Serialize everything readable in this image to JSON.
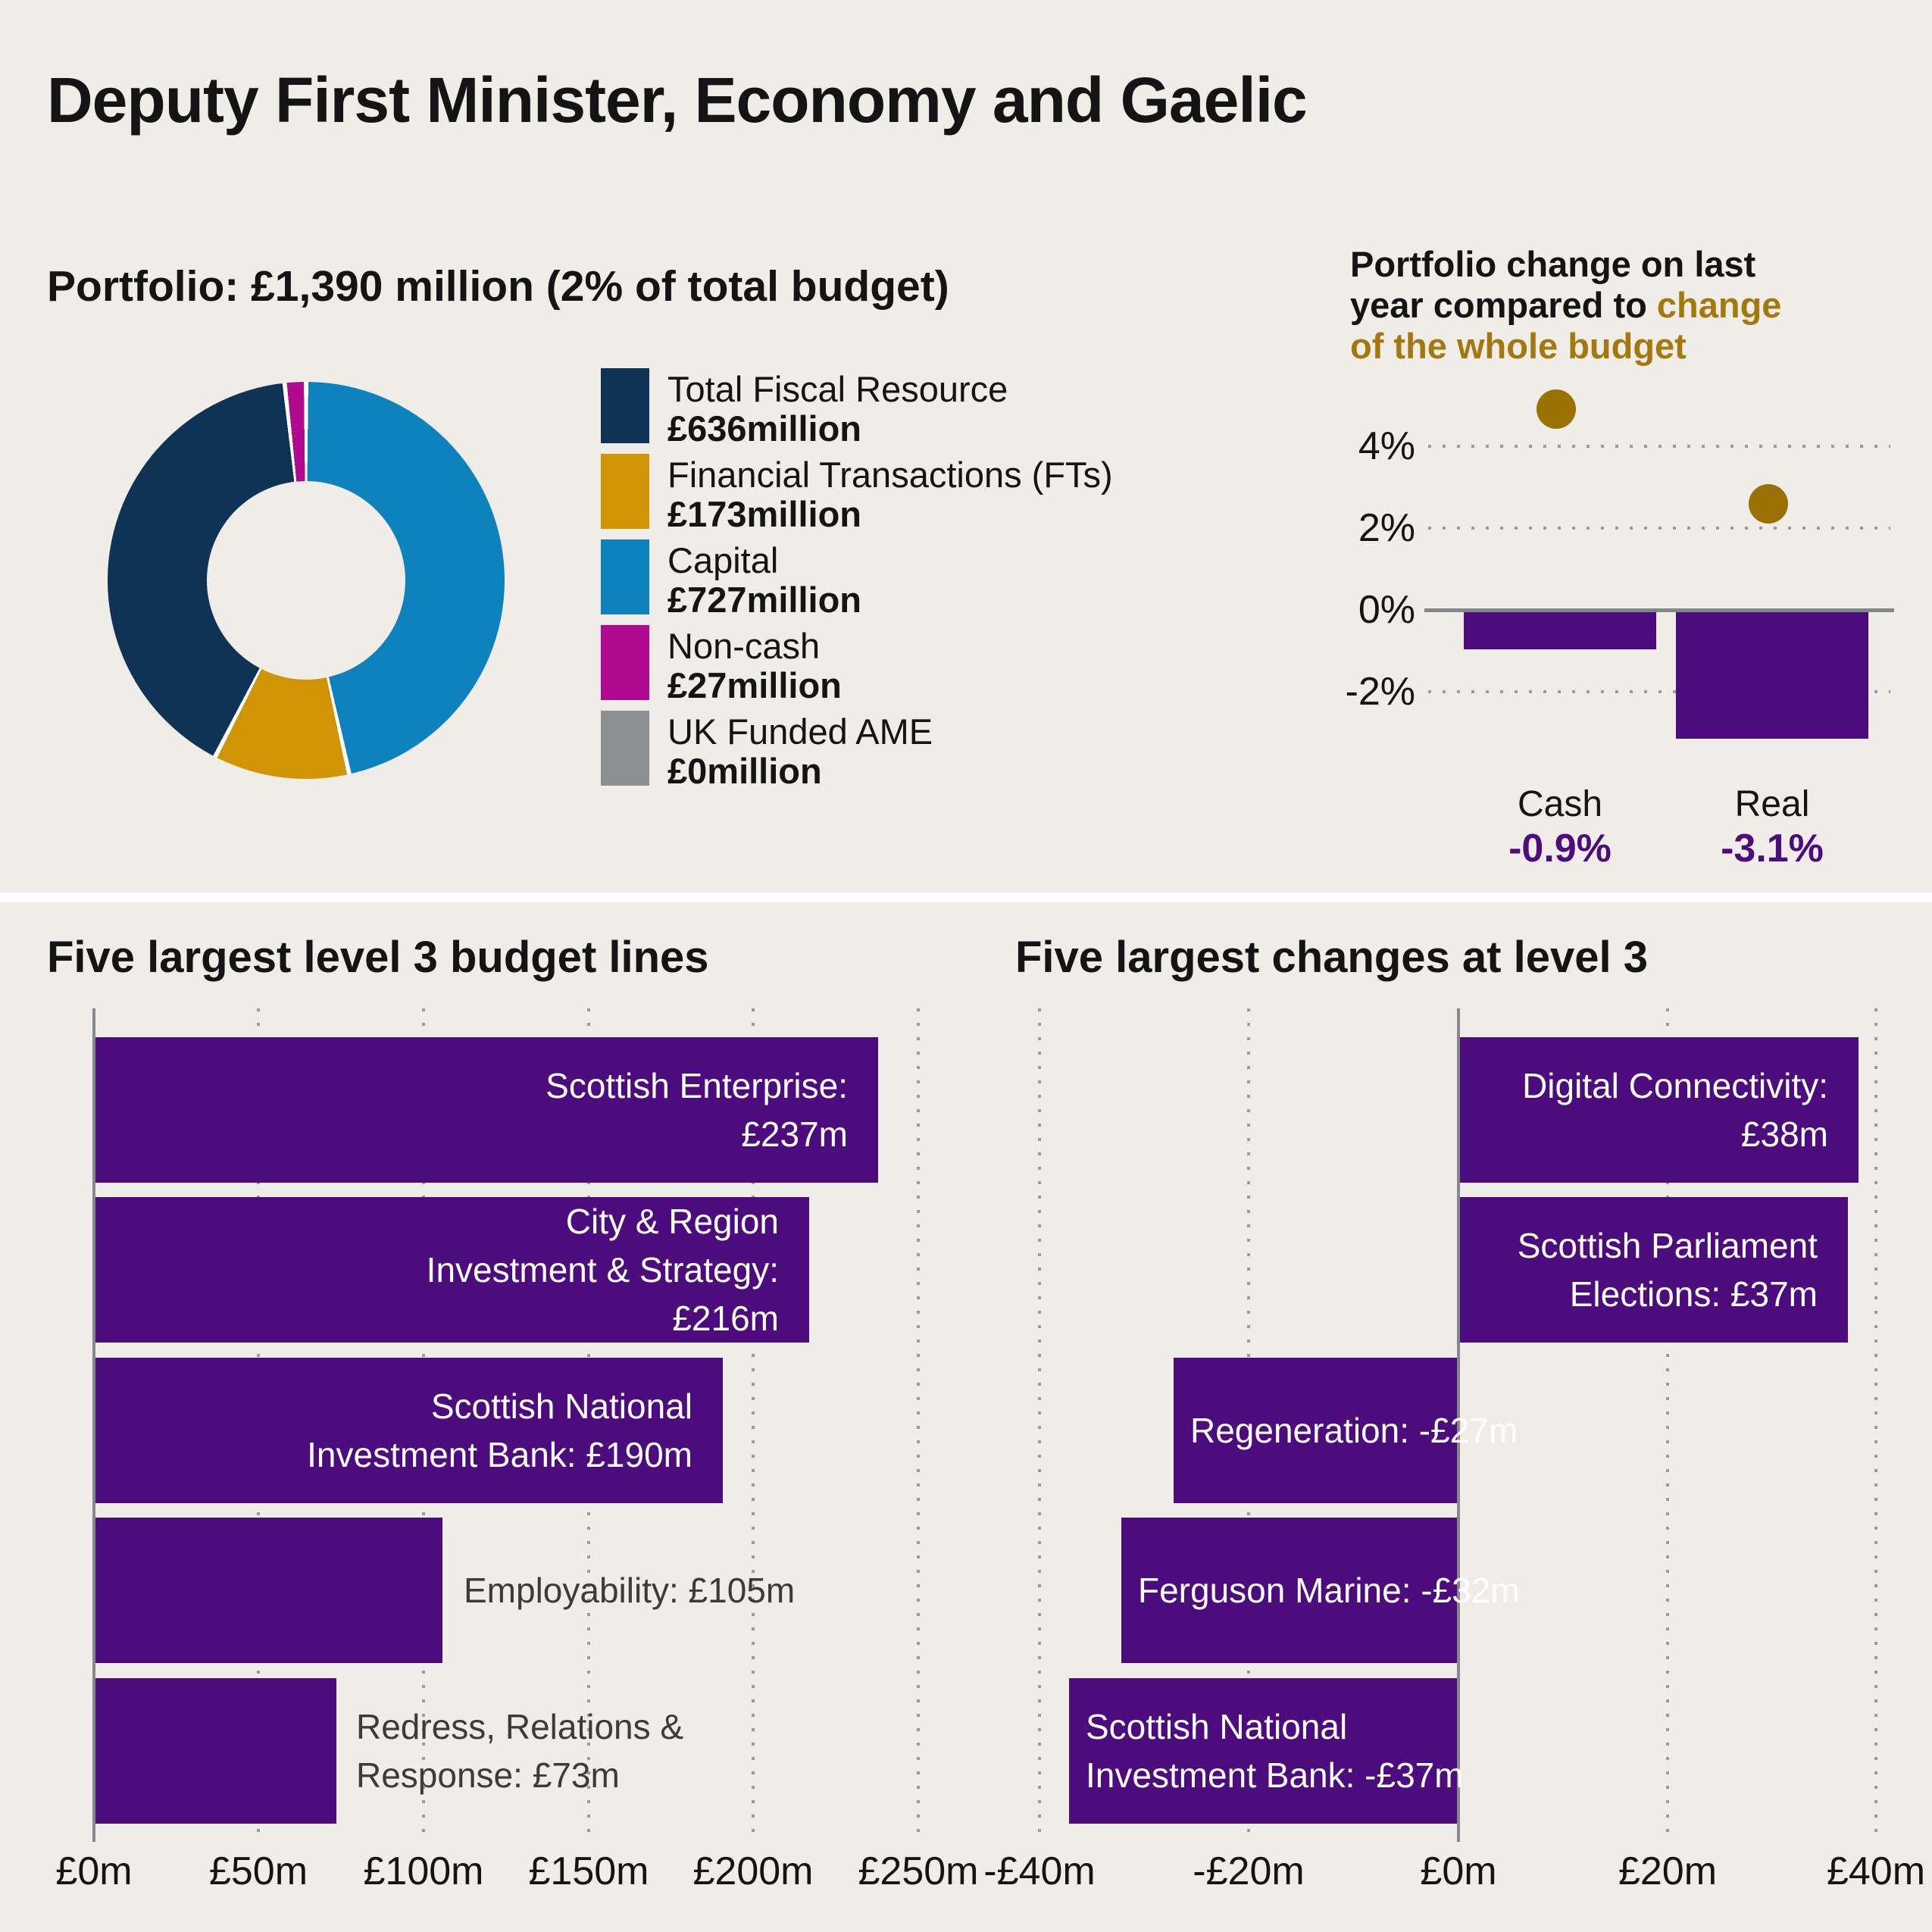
{
  "title": "Deputy First Minister, Economy and Gaelic",
  "colors": {
    "background": "#f0ece8",
    "accent_purple": "#4d0c7e",
    "navy": "#0e3355",
    "gold": "#d09405",
    "blue": "#0e82bd",
    "magenta": "#b00b8e",
    "gray": "#8c9091",
    "gold_dot": "#9a7104",
    "gold_title_text": "#a3790e",
    "axis_gray": "#85888a"
  },
  "portfolio": {
    "heading": "Portfolio: £1,390 million (2% of total budget)",
    "legend": [
      {
        "label": "Total Fiscal Resource",
        "value": "£636million",
        "color": "#0e3355"
      },
      {
        "label": "Financial Transactions (FTs)",
        "value": "£173million",
        "color": "#d09405"
      },
      {
        "label": "Capital",
        "value": "£727million",
        "color": "#0e82bd"
      },
      {
        "label": "Non-cash",
        "value": "£27million",
        "color": "#b00b8e"
      },
      {
        "label": "UK Funded AME",
        "value": "£0million",
        "color": "#8c9091"
      }
    ]
  },
  "change_chart": {
    "title_line1": "Portfolio change on last",
    "title_line2_black": "year compared to ",
    "title_line2_gold": "change",
    "title_line3_gold": "of the whole budget",
    "y_ticks": [
      "4%",
      "2%",
      "0%",
      "-2%"
    ],
    "items": [
      {
        "category": "Cash",
        "value_label": "-0.9%"
      },
      {
        "category": "Real",
        "value_label": "-3.1%"
      }
    ]
  },
  "left_chart": {
    "heading": "Five largest level 3 budget lines",
    "bars": [
      {
        "line1": "Scottish Enterprise:",
        "line2": "£237m"
      },
      {
        "line1": "City & Region",
        "line2": "Investment & Strategy:",
        "line3": "£216m"
      },
      {
        "line1": "Scottish National",
        "line2": "Investment Bank: £190m"
      },
      {
        "line1": "Employability: £105m"
      },
      {
        "line1": "Redress, Relations &",
        "line2": "Response: £73m"
      }
    ],
    "x_ticks": [
      "£0m",
      "£50m",
      "£100m",
      "£150m",
      "£200m",
      "£250m"
    ]
  },
  "right_chart": {
    "heading": "Five largest changes at level 3",
    "bars": [
      {
        "line1": "Digital Connectivity:",
        "line2": "£38m"
      },
      {
        "line1": "Scottish Parliament",
        "line2": "Elections: £37m"
      },
      {
        "line1": "Regeneration: -£27m"
      },
      {
        "line1": "Ferguson Marine: -£32m"
      },
      {
        "line1": "Scottish National",
        "line2": "Investment Bank: -£37m"
      }
    ],
    "x_ticks": [
      "-£40m",
      "-£20m",
      "£0m",
      "£20m",
      "£40m"
    ]
  },
  "chart_data": [
    {
      "type": "pie",
      "subtype": "donut",
      "title": "Portfolio: £1,390 million (2% of total budget)",
      "labels": [
        "Total Fiscal Resource",
        "Financial Transactions (FTs)",
        "Capital",
        "Non-cash",
        "UK Funded AME"
      ],
      "values": [
        636,
        173,
        727,
        27,
        0
      ],
      "unit": "£ million",
      "colors": [
        "#0e3355",
        "#d09405",
        "#0e82bd",
        "#b00b8e",
        "#8c9091"
      ],
      "hole": 0.5,
      "legend_position": "right"
    },
    {
      "type": "bar",
      "title": "Portfolio change on last year compared to change of the whole budget",
      "categories": [
        "Cash",
        "Real"
      ],
      "series": [
        {
          "name": "Portfolio change",
          "type": "bar",
          "values": [
            -0.9,
            -3.1
          ],
          "color": "#4d0c7e"
        },
        {
          "name": "Change of the whole budget",
          "type": "scatter",
          "values": [
            4.9,
            2.6
          ],
          "color": "#9a7104"
        }
      ],
      "yticks": [
        "4%",
        "2%",
        "0%",
        "-2%"
      ],
      "ylim": [
        -3.6,
        5.2
      ],
      "grid": "horizontal-dotted"
    },
    {
      "type": "bar",
      "orientation": "horizontal",
      "title": "Five largest level 3 budget lines",
      "categories": [
        "Scottish Enterprise",
        "City & Region Investment & Strategy",
        "Scottish National Investment Bank",
        "Employability",
        "Redress, Relations & Response"
      ],
      "values": [
        237,
        216,
        190,
        105,
        73
      ],
      "unit": "£m",
      "xticks": [
        "£0m",
        "£50m",
        "£100m",
        "£150m",
        "£200m",
        "£250m"
      ],
      "xlim": [
        0,
        258
      ],
      "color": "#4d0c7e",
      "grid": "vertical-dotted"
    },
    {
      "type": "bar",
      "orientation": "horizontal",
      "title": "Five largest changes at level 3",
      "categories": [
        "Digital Connectivity",
        "Scottish Parliament Elections",
        "Regeneration",
        "Ferguson Marine",
        "Scottish National Investment Bank"
      ],
      "values": [
        38,
        37,
        -27,
        -32,
        -37
      ],
      "unit": "£m",
      "xticks": [
        "-£40m",
        "-£20m",
        "£0m",
        "£20m",
        "£40m"
      ],
      "xlim": [
        -43,
        43
      ],
      "color": "#4d0c7e",
      "grid": "vertical-dotted"
    }
  ]
}
